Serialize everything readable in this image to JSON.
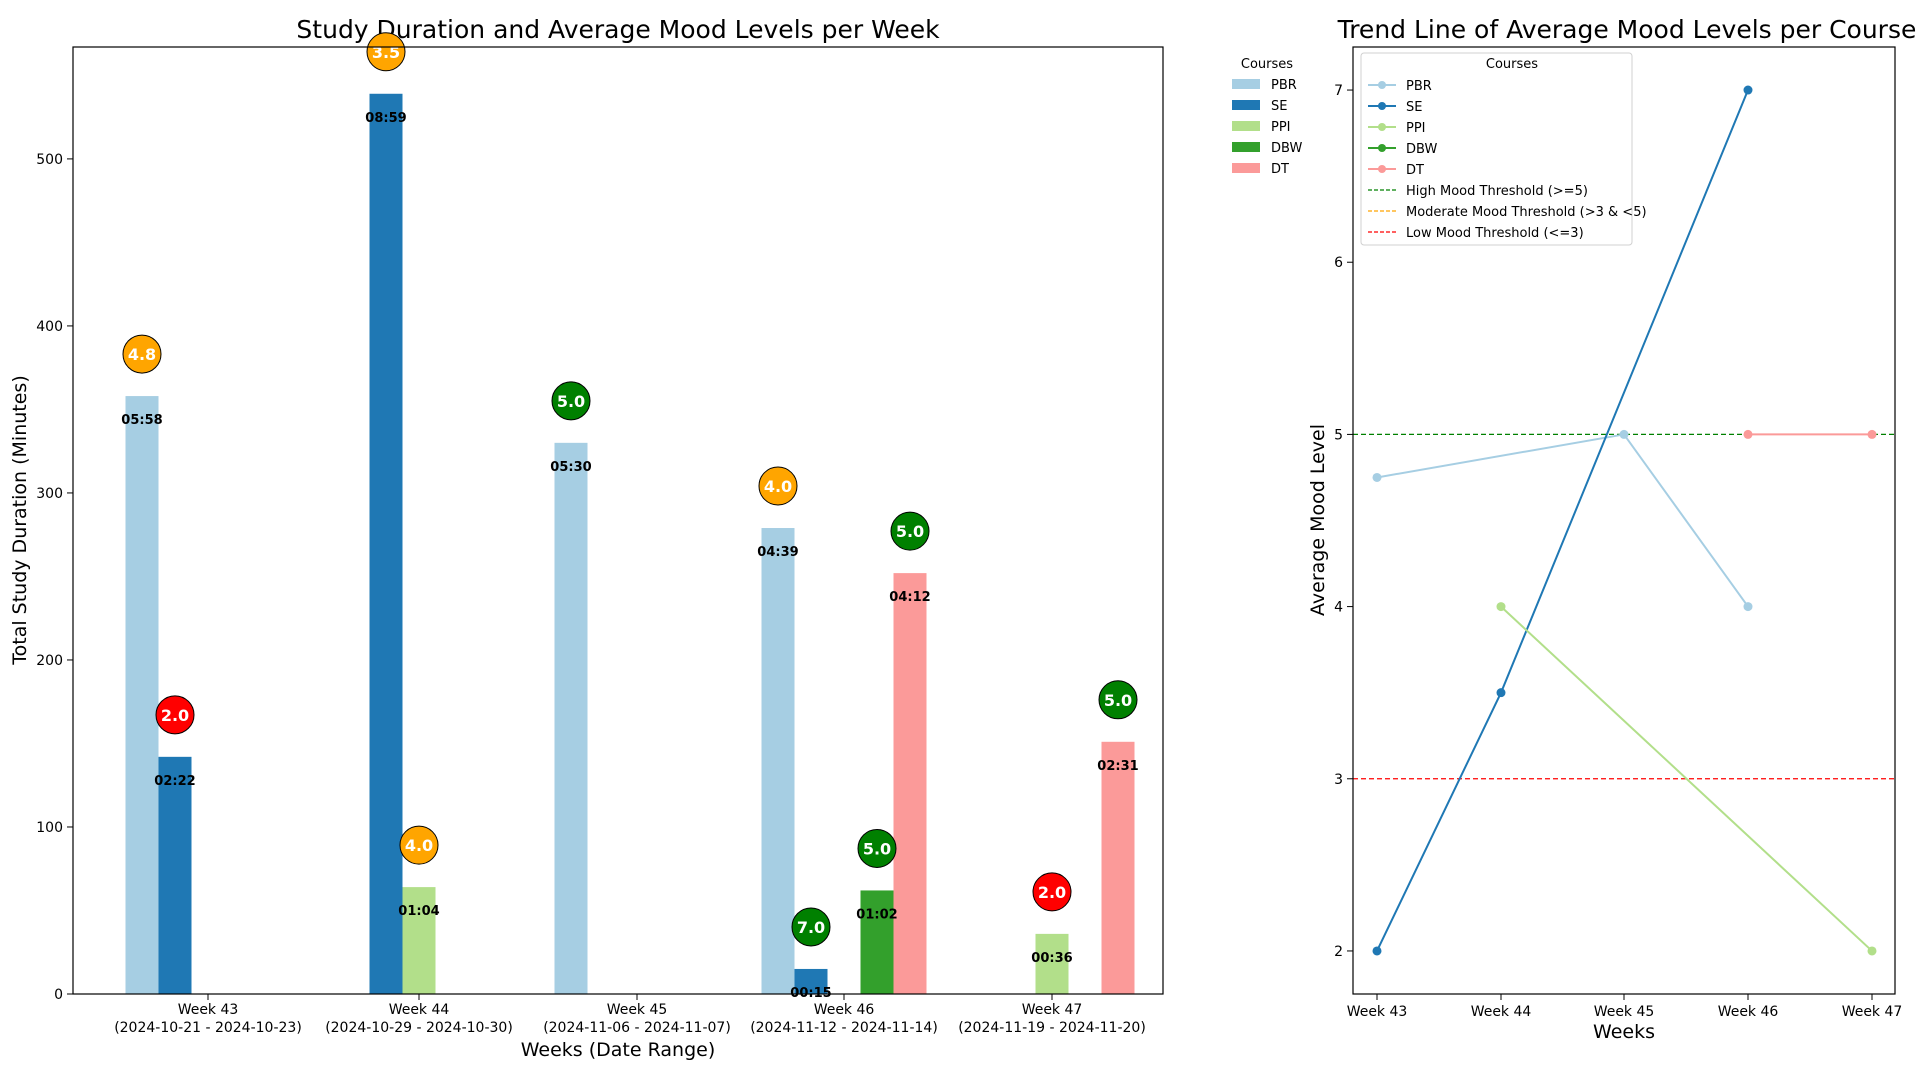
{
  "chart_data": [
    {
      "type": "bar",
      "title": "Study Duration and Average Mood Levels per Week",
      "xlabel": "Weeks (Date Range)",
      "ylabel": "Total Study Duration (Minutes)",
      "ylim": [
        0,
        567
      ],
      "yticks": [
        0,
        100,
        200,
        300,
        400,
        500
      ],
      "grid": false,
      "categories": [
        {
          "week": "Week 43",
          "range": "(2024-10-21 - 2024-10-23)"
        },
        {
          "week": "Week 44",
          "range": "(2024-10-29 - 2024-10-30)"
        },
        {
          "week": "Week 45",
          "range": "(2024-11-06 - 2024-11-07)"
        },
        {
          "week": "Week 46",
          "range": "(2024-11-12 - 2024-11-14)"
        },
        {
          "week": "Week 47",
          "range": "(2024-11-19 - 2024-11-20)"
        }
      ],
      "legend": {
        "title": "Courses",
        "placement": "outside-right"
      },
      "series": [
        {
          "name": "PBR",
          "color": "#a6cee3",
          "values": [
            358,
            null,
            330,
            279,
            null
          ],
          "labels": [
            "05:58",
            null,
            "05:30",
            "04:39",
            null
          ],
          "moods": [
            4.8,
            null,
            5.0,
            4.0,
            null
          ]
        },
        {
          "name": "SE",
          "color": "#1f78b4",
          "values": [
            142,
            539,
            null,
            15,
            null
          ],
          "labels": [
            "02:22",
            "08:59",
            null,
            "00:15",
            null
          ],
          "moods": [
            2.0,
            3.5,
            null,
            7.0,
            null
          ]
        },
        {
          "name": "PPI",
          "color": "#b2df8a",
          "values": [
            null,
            64,
            null,
            null,
            36
          ],
          "labels": [
            null,
            "01:04",
            null,
            null,
            "00:36"
          ],
          "moods": [
            null,
            4.0,
            null,
            null,
            2.0
          ]
        },
        {
          "name": "DBW",
          "color": "#33a02c",
          "values": [
            null,
            null,
            null,
            62,
            null
          ],
          "labels": [
            null,
            null,
            null,
            "01:02",
            null
          ],
          "moods": [
            null,
            null,
            null,
            5.0,
            null
          ]
        },
        {
          "name": "DT",
          "color": "#fb9a99",
          "values": [
            null,
            null,
            null,
            252,
            151
          ],
          "labels": [
            null,
            null,
            null,
            "04:12",
            "02:31"
          ],
          "moods": [
            null,
            null,
            null,
            5.0,
            5.0
          ]
        }
      ],
      "mood_colors": {
        "high": "#008000",
        "moderate": "#ffa500",
        "low": "#ff0000"
      }
    },
    {
      "type": "line",
      "title": "Trend Line of Average Mood Levels per Course",
      "xlabel": "Weeks",
      "ylabel": "Average Mood Level",
      "x": [
        "Week 43",
        "Week 44",
        "Week 45",
        "Week 46",
        "Week 47"
      ],
      "ylim": [
        1.75,
        7.25
      ],
      "yticks": [
        2,
        3,
        4,
        5,
        6,
        7
      ],
      "grid": false,
      "legend": {
        "title": "Courses",
        "placement": "top-left"
      },
      "series": [
        {
          "name": "PBR",
          "color": "#a6cee3",
          "values": [
            4.75,
            null,
            5.0,
            4.0,
            null
          ]
        },
        {
          "name": "SE",
          "color": "#1f78b4",
          "values": [
            2.0,
            3.5,
            null,
            7.0,
            null
          ]
        },
        {
          "name": "PPI",
          "color": "#b2df8a",
          "values": [
            null,
            4.0,
            null,
            null,
            2.0
          ]
        },
        {
          "name": "DBW",
          "color": "#33a02c",
          "values": [
            null,
            null,
            null,
            null,
            null
          ]
        },
        {
          "name": "DT",
          "color": "#fb9a99",
          "values": [
            null,
            null,
            null,
            5.0,
            5.0
          ]
        }
      ],
      "thresholds": [
        {
          "name": "High Mood Threshold (>=5)",
          "value": 5,
          "color": "#008000",
          "show": true
        },
        {
          "name": "Moderate Mood Threshold (>3 & <5)",
          "value": null,
          "color": "#ffa500",
          "show": false
        },
        {
          "name": "Low Mood Threshold (<=3)",
          "value": 3,
          "color": "#ff0000",
          "show": true
        }
      ]
    }
  ]
}
